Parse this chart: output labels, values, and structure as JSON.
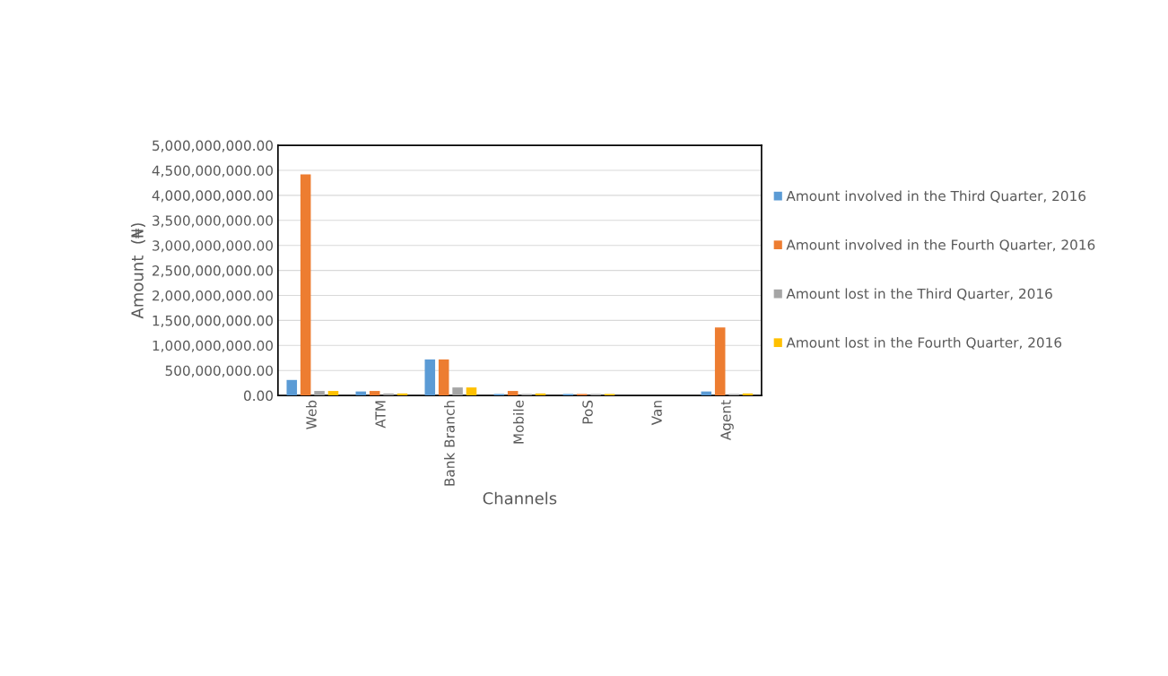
{
  "chart_data": {
    "type": "bar",
    "xlabel": "Channels",
    "ylabel": "Amount  (₦)",
    "categories": [
      "Web",
      "ATM",
      "Bank Branch",
      "Mobile",
      "PoS",
      "Van",
      "Agent"
    ],
    "series": [
      {
        "name": "Amount involved in the Third Quarter, 2016",
        "color": "#5b9bd5",
        "values": [
          310000000,
          80000000,
          720000000,
          30000000,
          30000000,
          null,
          80000000
        ]
      },
      {
        "name": "Amount involved in the Fourth Quarter, 2016",
        "color": "#ed7d31",
        "values": [
          4420000000,
          90000000,
          720000000,
          90000000,
          30000000,
          null,
          1360000000
        ]
      },
      {
        "name": "Amount lost in the Third Quarter, 2016",
        "color": "#a5a5a5",
        "values": [
          90000000,
          40000000,
          160000000,
          30000000,
          30000000,
          null,
          30000000
        ]
      },
      {
        "name": "Amount lost in the Fourth Quarter, 2016",
        "color": "#ffc000",
        "values": [
          90000000,
          40000000,
          160000000,
          40000000,
          30000000,
          null,
          40000000
        ]
      }
    ],
    "ylim": [
      0,
      5000000000
    ],
    "yticks": [
      {
        "value": 0,
        "label": "0.00"
      },
      {
        "value": 500000000,
        "label": "500,000,000.00"
      },
      {
        "value": 1000000000,
        "label": "1,000,000,000.00"
      },
      {
        "value": 1500000000,
        "label": "1,500,000,000.00"
      },
      {
        "value": 2000000000,
        "label": "2,000,000,000.00"
      },
      {
        "value": 2500000000,
        "label": "2,500,000,000.00"
      },
      {
        "value": 3000000000,
        "label": "3,000,000,000.00"
      },
      {
        "value": 3500000000,
        "label": "3,500,000,000.00"
      },
      {
        "value": 4000000000,
        "label": "4,000,000,000.00"
      },
      {
        "value": 4500000000,
        "label": "4,500,000,000.00"
      },
      {
        "value": 5000000000,
        "label": "5,000,000,000.00"
      }
    ],
    "grid": "y",
    "legend": "right"
  }
}
